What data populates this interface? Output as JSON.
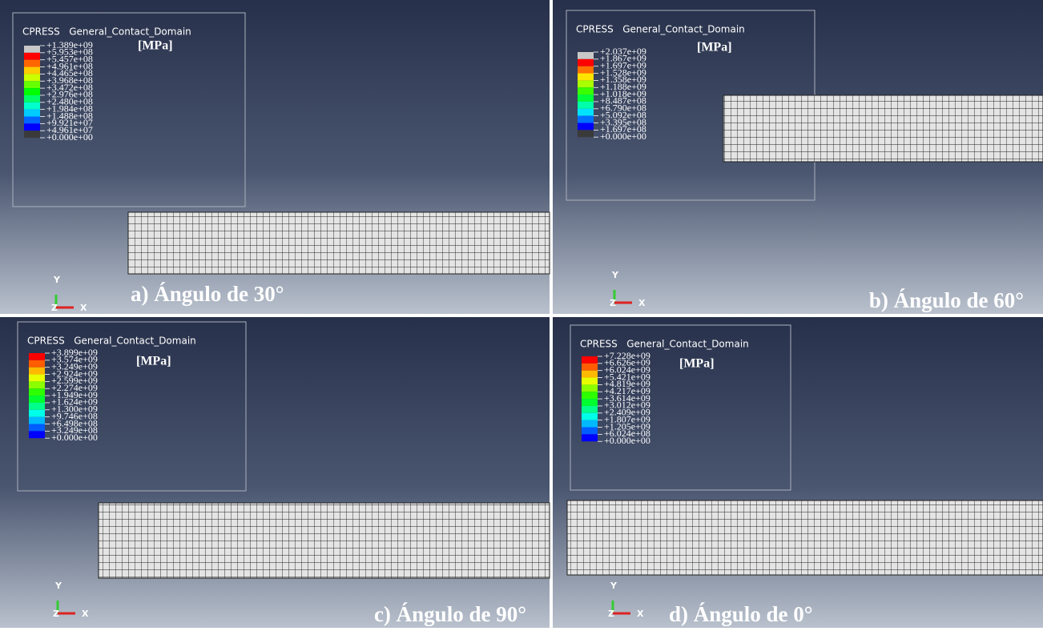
{
  "panels": [
    {
      "legend": {
        "title": "CPRESS   General_Contact_Domain",
        "unit": "[MPa]",
        "labels": [
          "+1.389e+09",
          "+5.953e+08",
          "+5.457e+08",
          "+4.961e+08",
          "+4.465e+08",
          "+3.968e+08",
          "+3.472e+08",
          "+2.976e+08",
          "+2.480e+08",
          "+1.984e+08",
          "+1.488e+08",
          "+9.921e+07",
          "+4.961e+07",
          "+0.000e+00"
        ]
      },
      "caption": "a) Ángulo de 30°",
      "axes": {
        "y": "Y",
        "z": "Z",
        "x": "X"
      }
    },
    {
      "legend": {
        "title": "CPRESS   General_Contact_Domain",
        "unit": "[MPa]",
        "labels": [
          "+2.037e+09",
          "+1.867e+09",
          "+1.697e+09",
          "+1.528e+09",
          "+1.358e+09",
          "+1.188e+09",
          "+1.018e+09",
          "+8.487e+08",
          "+6.790e+08",
          "+5.092e+08",
          "+3.395e+08",
          "+1.697e+08",
          "+0.000e+00"
        ]
      },
      "caption": "b) Ángulo de 60°",
      "axes": {
        "y": "Y",
        "z": "Z",
        "x": "X"
      }
    },
    {
      "legend": {
        "title": "CPRESS   General_Contact_Domain",
        "unit": "[MPa]",
        "labels": [
          "+3.899e+09",
          "+3.574e+09",
          "+3.249e+09",
          "+2.924e+09",
          "+2.599e+09",
          "+2.274e+09",
          "+1.949e+09",
          "+1.624e+09",
          "+1.300e+09",
          "+9.746e+08",
          "+6.498e+08",
          "+3.249e+08",
          "+0.000e+00"
        ]
      },
      "caption": "c) Ángulo de 90°",
      "axes": {
        "y": "Y",
        "z": "Z",
        "x": "X"
      }
    },
    {
      "legend": {
        "title": "CPRESS   General_Contact_Domain",
        "unit": "[MPa]",
        "labels": [
          "+7.228e+09",
          "+6.626e+09",
          "+6.024e+09",
          "+5.421e+09",
          "+4.819e+09",
          "+4.217e+09",
          "+3.614e+09",
          "+3.012e+09",
          "+2.409e+09",
          "+1.807e+09",
          "+1.205e+09",
          "+6.024e+08",
          "+0.000e+00"
        ]
      },
      "caption": "d) Ángulo de 0°",
      "axes": {
        "y": "Y",
        "z": "Z",
        "x": "X"
      }
    }
  ]
}
